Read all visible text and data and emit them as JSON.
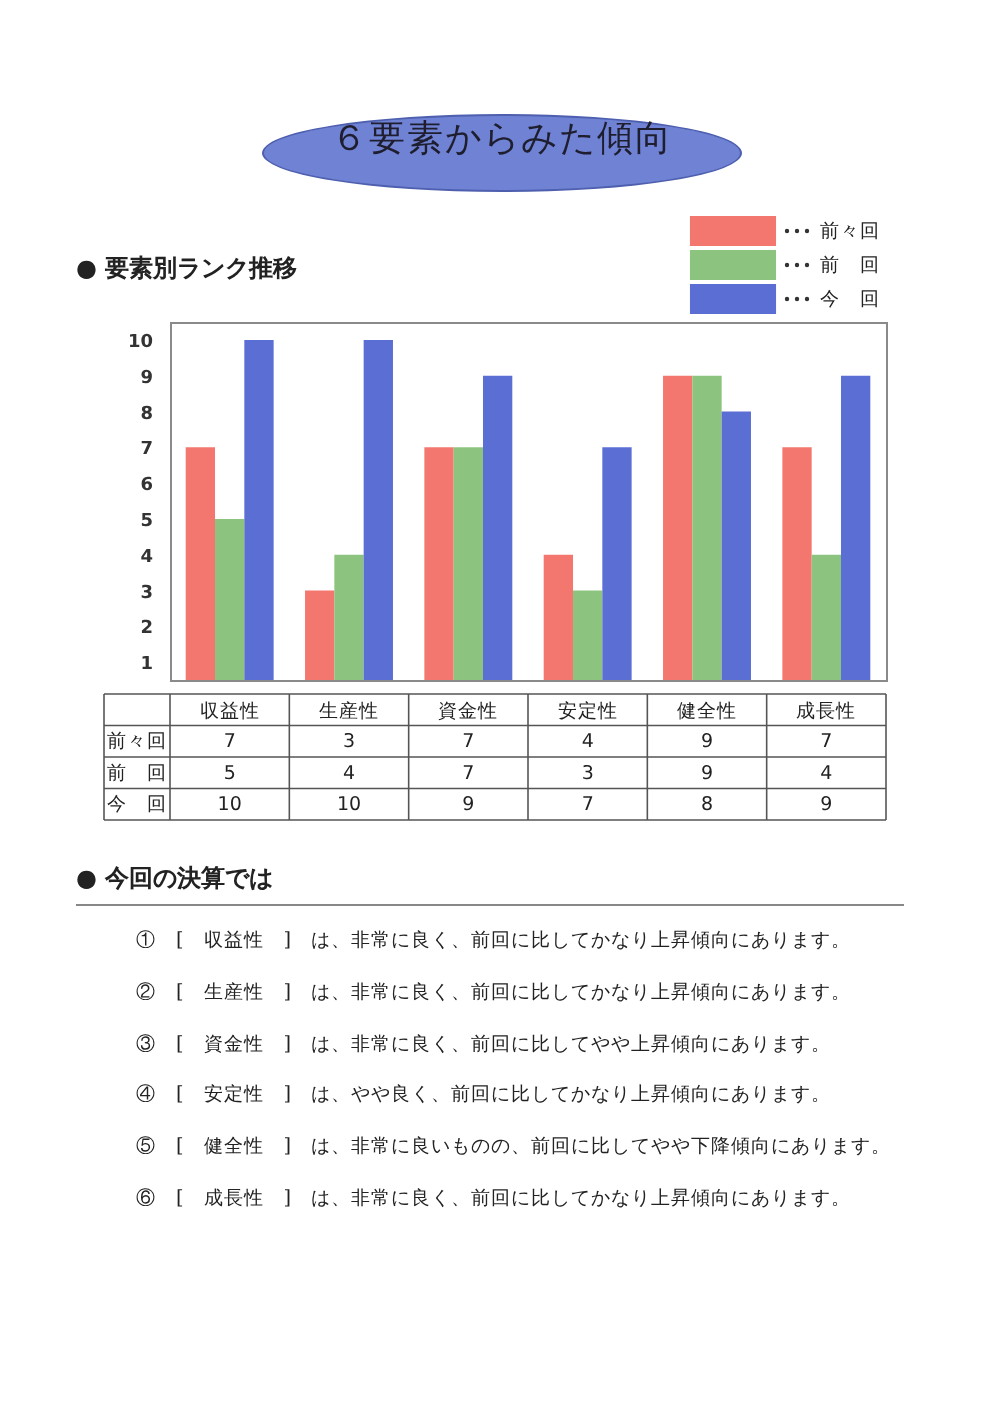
{
  "chart_data": {
    "type": "bar",
    "title": "６要素からみた傾向",
    "subtitle": "● 要素別ランク推移",
    "categories": [
      "収益性",
      "生産性",
      "資金性",
      "安定性",
      "健全性",
      "成長性"
    ],
    "series": [
      {
        "name": "前々回",
        "color": "#f4776f",
        "values": [
          7,
          3,
          7,
          4,
          9,
          7
        ]
      },
      {
        "name": "前　回",
        "color": "#8cc47f",
        "values": [
          5,
          4,
          7,
          3,
          9,
          4
        ]
      },
      {
        "name": "今　回",
        "color": "#5b6ed4",
        "values": [
          10,
          10,
          9,
          7,
          8,
          9
        ]
      }
    ],
    "ylim": [
      0.5,
      10.5
    ],
    "yticks": [
      1,
      2,
      3,
      4,
      5,
      6,
      7,
      8,
      9,
      10
    ],
    "legend": "top right",
    "data_labels": true,
    "annotations": [
      "● 今回の決算では",
      "①　[　収益性　]　は、非常に良く、前回に比してかなり上昇傾向にあります。",
      "②　[　生産性　]　は、非常に良く、前回に比してかなり上昇傾向にあります。",
      "③　[　資金性　]　は、非常に良く、前回に比してやや上昇傾向にあります。",
      "④　[　安定性　]　は、やや良く、前回に比してかなり上昇傾向にあります。",
      "⑤　[　健全性　]　は、非常に良いものの、前回に比してやや下降傾向にあります。",
      "⑥　[　成長性　]　は、非常に良く、前回に比してかなり上昇傾向にあります。"
    ]
  }
}
